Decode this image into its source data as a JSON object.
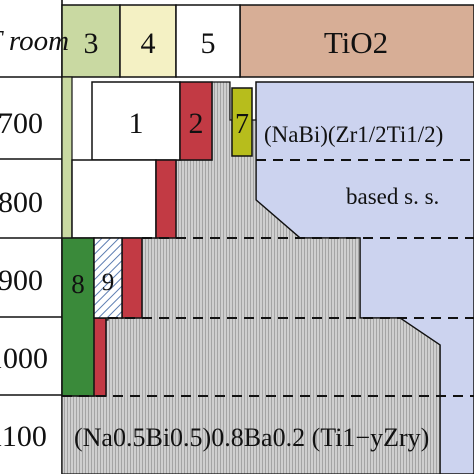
{
  "diagram": {
    "header_row_label": "T room",
    "temperature_rows": [
      "700",
      "800",
      "900",
      "1000",
      "1100"
    ],
    "phase_column_labels": [
      "3",
      "4",
      "5"
    ],
    "region_labels": {
      "phase_1": "1",
      "phase_2": "2",
      "phase_7": "7",
      "phase_8": "8",
      "phase_9": "9",
      "tio2": "TiO2",
      "nabi_zrti_line1": "(NaBi)(Zr1/2Ti1/2)",
      "nabi_zrti_line2": "based s. s.",
      "perovskite_formula": "(Na0.5Bi0.5)0.8Ba0.2 (Ti1−yZry)"
    },
    "colors": {
      "phase_3": "#c9d9a2",
      "phase_4": "#f4f1c4",
      "tio2": "#d7ae96",
      "nabi_ss": "#ccd3ef",
      "red_phase": "#c23a44",
      "phase_7": "#b7bd1c",
      "phase_8": "#3a8a3a",
      "perovskite": "#d0d0d0",
      "grid": "#111111"
    }
  }
}
